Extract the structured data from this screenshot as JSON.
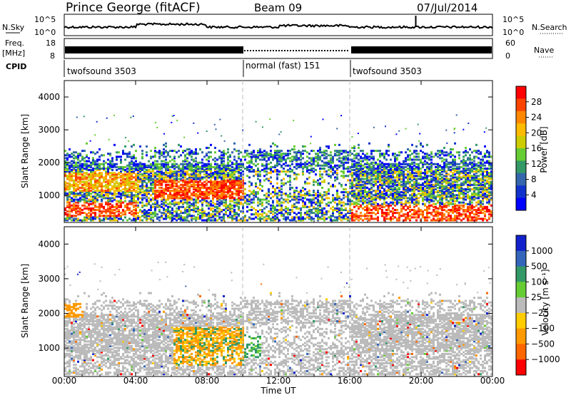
{
  "header": {
    "station": "Prince George (fitACF)",
    "beam": "Beam 09",
    "date": "07/Jul/2014"
  },
  "labels": {
    "nsky": "N.Sky",
    "nsearch": "N.Search",
    "freq_top": "Freq.",
    "freq_unit": "[MHz]",
    "nave": "Nave",
    "cpid": "CPID",
    "noise_ticks_left": [
      "10^5",
      "10^0"
    ],
    "noise_ticks_right": [
      "10^5",
      "10^0"
    ],
    "freq_ticks": [
      "18",
      "8"
    ],
    "nave_ticks": [
      "60",
      "0"
    ]
  },
  "cpid_segments": [
    {
      "label": "twofsound 3503",
      "start_h": 0,
      "end_h": 10
    },
    {
      "label": "normal (fast) 151",
      "start_h": 10,
      "end_h": 16
    },
    {
      "label": "twofsound 3503",
      "start_h": 16,
      "end_h": 24
    }
  ],
  "chart_data": [
    {
      "type": "heatmap",
      "quantity": "Power",
      "ylabel": "Slant Range [km]",
      "xlabel": "Time UT",
      "xlim_hours": [
        0,
        24
      ],
      "ylim": [
        180,
        4500
      ],
      "yticks": [
        1000,
        2000,
        3000,
        4000
      ],
      "xtick_labels": [
        "00:00",
        "04:00",
        "08:00",
        "12:00",
        "16:00",
        "20:00",
        "00:00"
      ],
      "colorbar": {
        "label": "Power [dB]",
        "ticks": [
          "28",
          "24",
          "20",
          "16",
          "12",
          "8",
          "4"
        ],
        "colors": [
          "#ff0000",
          "#ff4400",
          "#ff8800",
          "#ffbb00",
          "#cccc00",
          "#66cc33",
          "#339966",
          "#3366aa",
          "#1133cc",
          "#0000ff"
        ]
      }
    },
    {
      "type": "heatmap",
      "quantity": "Velocity",
      "ylabel": "Slant Range [km]",
      "xlabel": "Time UT",
      "xlim_hours": [
        0,
        24
      ],
      "ylim": [
        180,
        4500
      ],
      "yticks": [
        1000,
        2000,
        3000,
        4000
      ],
      "xtick_labels": [
        "00:00",
        "04:00",
        "08:00",
        "12:00",
        "16:00",
        "20:00",
        "00:00"
      ],
      "colorbar": {
        "label": "Velocity [m s⁻¹]",
        "ticks": [
          "1000",
          "500",
          "100",
          "25",
          "−25",
          "−100",
          "−500",
          "−1000"
        ],
        "colors": [
          "#1122cc",
          "#3366bb",
          "#339966",
          "#66cc33",
          "#bbbbbb",
          "#ffcc00",
          "#ff9900",
          "#ff6600",
          "#ff0000"
        ]
      }
    }
  ]
}
